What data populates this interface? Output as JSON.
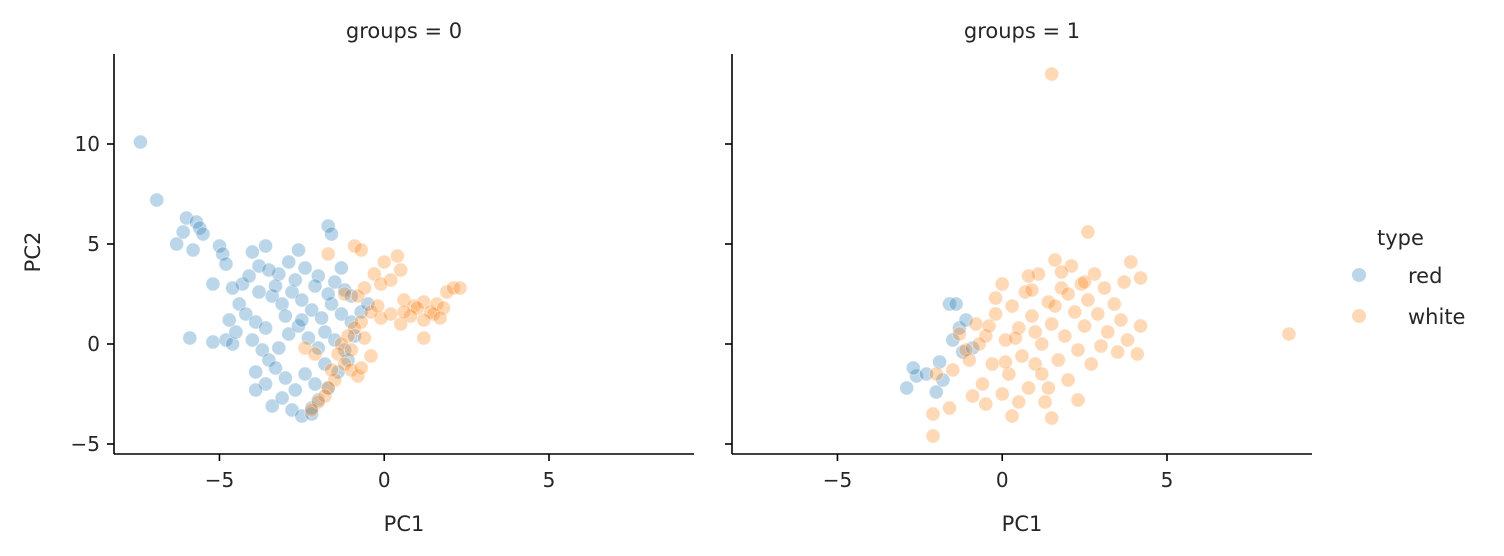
{
  "chart_data": {
    "type": "scatter",
    "layout": "facet-columns",
    "xlabel": "PC1",
    "ylabel": "PC2",
    "xlim": [
      -8.2,
      9.4
    ],
    "ylim": [
      -5.5,
      14.5
    ],
    "xticks": [
      -5,
      0,
      5
    ],
    "yticks": [
      -5,
      0,
      5,
      10
    ],
    "legend": {
      "title": "type",
      "placement": "right",
      "entries": [
        {
          "label": "red",
          "color": "#1f77b4"
        },
        {
          "label": "white",
          "color": "#ff7f0e"
        }
      ]
    },
    "marker_opacity": 0.3,
    "panels": [
      {
        "title": "groups = 0",
        "series": [
          {
            "name": "red",
            "color": "#1f77b4",
            "points": [
              [
                -7.4,
                10.1
              ],
              [
                -6.9,
                7.2
              ],
              [
                -6.0,
                6.3
              ],
              [
                -5.7,
                6.1
              ],
              [
                -5.6,
                5.8
              ],
              [
                -5.5,
                5.5
              ],
              [
                -6.3,
                5.0
              ],
              [
                -6.1,
                5.6
              ],
              [
                -5.8,
                4.7
              ],
              [
                -5.0,
                4.9
              ],
              [
                -4.9,
                4.5
              ],
              [
                -4.8,
                4.0
              ],
              [
                -5.9,
                0.3
              ],
              [
                -5.2,
                0.1
              ],
              [
                -4.8,
                0.2
              ],
              [
                -4.6,
                0.0
              ],
              [
                -5.2,
                3.0
              ],
              [
                -4.0,
                4.6
              ],
              [
                -3.6,
                4.9
              ],
              [
                -2.6,
                4.7
              ],
              [
                -1.7,
                5.9
              ],
              [
                -1.6,
                5.5
              ],
              [
                -1.3,
                3.8
              ],
              [
                -4.3,
                3.0
              ],
              [
                -4.6,
                2.8
              ],
              [
                -4.1,
                3.4
              ],
              [
                -3.8,
                3.9
              ],
              [
                -3.2,
                3.5
              ],
              [
                -2.9,
                4.1
              ],
              [
                -2.4,
                3.8
              ],
              [
                -2.0,
                3.4
              ],
              [
                -1.5,
                3.1
              ],
              [
                -1.2,
                2.7
              ],
              [
                -1.0,
                2.4
              ],
              [
                -4.4,
                2.0
              ],
              [
                -4.2,
                1.5
              ],
              [
                -3.9,
                1.1
              ],
              [
                -3.6,
                0.8
              ],
              [
                -3.4,
                2.4
              ],
              [
                -3.1,
                2.0
              ],
              [
                -2.8,
                2.6
              ],
              [
                -2.5,
                2.2
              ],
              [
                -2.2,
                1.7
              ],
              [
                -1.9,
                1.3
              ],
              [
                -1.6,
                2.0
              ],
              [
                -1.3,
                1.5
              ],
              [
                -1.0,
                1.1
              ],
              [
                -0.7,
                1.6
              ],
              [
                -0.5,
                2.0
              ],
              [
                -4.5,
                0.6
              ],
              [
                -4.0,
                0.2
              ],
              [
                -3.7,
                -0.3
              ],
              [
                -3.5,
                -0.8
              ],
              [
                -3.2,
                -0.2
              ],
              [
                -2.9,
                0.5
              ],
              [
                -2.6,
                0.9
              ],
              [
                -2.3,
                0.3
              ],
              [
                -2.0,
                -0.2
              ],
              [
                -1.8,
                0.6
              ],
              [
                -1.5,
                0.2
              ],
              [
                -1.2,
                -0.3
              ],
              [
                -0.9,
                0.4
              ],
              [
                -3.9,
                -1.4
              ],
              [
                -3.6,
                -2.0
              ],
              [
                -3.3,
                -1.2
              ],
              [
                -3.0,
                -1.7
              ],
              [
                -2.7,
                -2.3
              ],
              [
                -2.4,
                -1.5
              ],
              [
                -2.1,
                -2.0
              ],
              [
                -1.8,
                -1.0
              ],
              [
                -3.4,
                -3.1
              ],
              [
                -3.1,
                -2.7
              ],
              [
                -2.8,
                -3.3
              ],
              [
                -2.5,
                -3.6
              ],
              [
                -2.2,
                -3.5
              ],
              [
                -2.0,
                -2.8
              ],
              [
                -1.7,
                -2.2
              ],
              [
                -3.9,
                -2.3
              ],
              [
                -3.3,
                2.9
              ],
              [
                -2.7,
                3.2
              ],
              [
                -2.1,
                2.9
              ],
              [
                -1.7,
                2.5
              ],
              [
                -3.0,
                1.4
              ],
              [
                -2.5,
                1.2
              ],
              [
                -3.8,
                2.6
              ],
              [
                -4.7,
                1.2
              ],
              [
                -1.4,
                -1.4
              ],
              [
                -1.1,
                -0.8
              ],
              [
                -2.2,
                -3.2
              ],
              [
                -3.5,
                3.7
              ]
            ]
          },
          {
            "name": "white",
            "color": "#ff7f0e",
            "points": [
              [
                -1.7,
                4.5
              ],
              [
                -0.9,
                4.9
              ],
              [
                -0.7,
                4.7
              ],
              [
                -0.3,
                3.5
              ],
              [
                0.0,
                4.1
              ],
              [
                0.4,
                4.4
              ],
              [
                0.5,
                3.7
              ],
              [
                0.2,
                3.2
              ],
              [
                -0.1,
                3.0
              ],
              [
                -0.6,
                2.8
              ],
              [
                -0.8,
                2.4
              ],
              [
                0.6,
                2.2
              ],
              [
                0.9,
                1.9
              ],
              [
                1.2,
                2.1
              ],
              [
                1.4,
                1.6
              ],
              [
                1.6,
                2.0
              ],
              [
                1.9,
                2.6
              ],
              [
                2.1,
                2.8
              ],
              [
                2.3,
                2.8
              ],
              [
                1.8,
                1.8
              ],
              [
                1.5,
                1.5
              ],
              [
                1.2,
                1.2
              ],
              [
                1.0,
                1.8
              ],
              [
                0.8,
                1.4
              ],
              [
                0.5,
                1.0
              ],
              [
                0.2,
                1.5
              ],
              [
                -0.1,
                1.3
              ],
              [
                -0.4,
                1.6
              ],
              [
                -0.7,
                1.1
              ],
              [
                -0.9,
                0.8
              ],
              [
                -1.1,
                0.4
              ],
              [
                -1.3,
                0.0
              ],
              [
                -1.4,
                -0.5
              ],
              [
                -1.2,
                -1.0
              ],
              [
                -1.0,
                -1.3
              ],
              [
                -0.8,
                -1.6
              ],
              [
                -1.5,
                -1.8
              ],
              [
                -1.7,
                -2.2
              ],
              [
                -1.8,
                -2.6
              ],
              [
                -2.0,
                -2.9
              ],
              [
                -2.2,
                -3.3
              ],
              [
                -1.6,
                -1.3
              ],
              [
                -1.0,
                -0.3
              ],
              [
                -0.6,
                0.3
              ],
              [
                -0.4,
                -0.6
              ],
              [
                -0.7,
                -1.2
              ],
              [
                -1.2,
                2.5
              ],
              [
                -0.2,
                1.9
              ],
              [
                1.2,
                0.3
              ],
              [
                0.6,
                1.6
              ],
              [
                1.7,
                1.3
              ],
              [
                -2.4,
                -0.2
              ],
              [
                -2.1,
                -0.5
              ]
            ]
          }
        ]
      },
      {
        "title": "groups = 1",
        "series": [
          {
            "name": "red",
            "color": "#1f77b4",
            "points": [
              [
                -2.9,
                -2.2
              ],
              [
                -2.6,
                -1.6
              ],
              [
                -2.7,
                -1.2
              ],
              [
                -2.3,
                -1.5
              ],
              [
                -1.9,
                -0.9
              ],
              [
                -2.0,
                -2.4
              ],
              [
                -1.8,
                -1.8
              ],
              [
                -1.6,
                2.0
              ],
              [
                -1.4,
                2.0
              ],
              [
                -1.3,
                0.8
              ],
              [
                -1.5,
                0.2
              ],
              [
                -1.2,
                -0.4
              ],
              [
                -1.1,
                1.2
              ],
              [
                -0.9,
                -0.2
              ]
            ]
          },
          {
            "name": "white",
            "color": "#ff7f0e",
            "points": [
              [
                1.5,
                13.5
              ],
              [
                8.7,
                0.5
              ],
              [
                -2.1,
                -4.6
              ],
              [
                -2.1,
                -3.5
              ],
              [
                -2.0,
                -1.5
              ],
              [
                -1.5,
                -1.3
              ],
              [
                -1.3,
                0.5
              ],
              [
                -1.0,
                -0.8
              ],
              [
                -0.8,
                1.0
              ],
              [
                -0.6,
                -2.0
              ],
              [
                -0.5,
                0.4
              ],
              [
                -0.3,
                -1.0
              ],
              [
                -0.2,
                1.5
              ],
              [
                0.0,
                -2.5
              ],
              [
                0.0,
                3.0
              ],
              [
                0.1,
                0.2
              ],
              [
                0.2,
                -1.5
              ],
              [
                0.3,
                1.9
              ],
              [
                0.3,
                -3.6
              ],
              [
                0.5,
                0.8
              ],
              [
                0.6,
                -0.6
              ],
              [
                0.7,
                2.6
              ],
              [
                0.8,
                -2.2
              ],
              [
                0.9,
                1.4
              ],
              [
                1.0,
                -1.0
              ],
              [
                1.1,
                3.5
              ],
              [
                1.2,
                0.0
              ],
              [
                1.3,
                -2.9
              ],
              [
                1.4,
                2.1
              ],
              [
                1.5,
                -3.7
              ],
              [
                1.5,
                1.0
              ],
              [
                1.6,
                4.2
              ],
              [
                1.7,
                -0.8
              ],
              [
                1.8,
                2.8
              ],
              [
                1.9,
                0.4
              ],
              [
                2.0,
                -1.8
              ],
              [
                2.1,
                3.9
              ],
              [
                2.2,
                1.6
              ],
              [
                2.3,
                -0.3
              ],
              [
                2.4,
                3.0
              ],
              [
                2.5,
                0.9
              ],
              [
                2.6,
                5.6
              ],
              [
                2.6,
                2.2
              ],
              [
                2.7,
                -1.0
              ],
              [
                2.8,
                3.5
              ],
              [
                2.9,
                1.5
              ],
              [
                3.0,
                -0.1
              ],
              [
                3.1,
                2.8
              ],
              [
                3.2,
                0.6
              ],
              [
                3.4,
                2.0
              ],
              [
                3.5,
                -0.4
              ],
              [
                3.6,
                1.2
              ],
              [
                3.7,
                3.1
              ],
              [
                3.8,
                0.2
              ],
              [
                3.9,
                4.1
              ],
              [
                4.1,
                -0.5
              ],
              [
                4.2,
                3.3
              ],
              [
                4.2,
                0.9
              ],
              [
                2.3,
                -2.8
              ],
              [
                1.4,
                -2.2
              ],
              [
                0.8,
                3.4
              ],
              [
                -0.5,
                -3.0
              ],
              [
                -1.6,
                -3.2
              ],
              [
                -0.9,
                -2.6
              ],
              [
                -0.2,
                2.3
              ],
              [
                0.5,
                -2.9
              ],
              [
                -0.7,
                0.0
              ],
              [
                0.4,
                0.3
              ],
              [
                1.0,
                0.6
              ],
              [
                1.6,
                1.9
              ],
              [
                2.0,
                2.5
              ],
              [
                2.5,
                3.1
              ],
              [
                -1.1,
                -0.3
              ],
              [
                0.1,
                -0.9
              ],
              [
                1.2,
                -1.5
              ],
              [
                -0.4,
                0.9
              ],
              [
                0.9,
                2.7
              ],
              [
                1.8,
                3.6
              ]
            ]
          }
        ]
      }
    ]
  }
}
